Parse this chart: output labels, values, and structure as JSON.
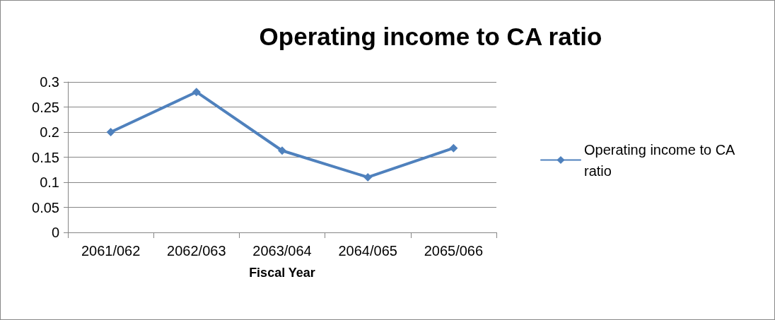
{
  "chart_data": {
    "type": "line",
    "title": "Operating income to CA ratio",
    "xlabel": "Fiscal Year",
    "categories": [
      "2061/062",
      "2062/063",
      "2063/064",
      "2064/065",
      "2065/066"
    ],
    "series": [
      {
        "name": "Operating income to CA ratio",
        "color": "#4f81bd",
        "values": [
          0.2,
          0.28,
          0.163,
          0.11,
          0.168
        ]
      }
    ],
    "ylim": [
      0,
      0.3
    ],
    "yticks": [
      0,
      0.05,
      0.1,
      0.15,
      0.2,
      0.25,
      0.3
    ],
    "grid": "y",
    "legend": "right",
    "marker": "diamond",
    "line_style": "solid"
  }
}
